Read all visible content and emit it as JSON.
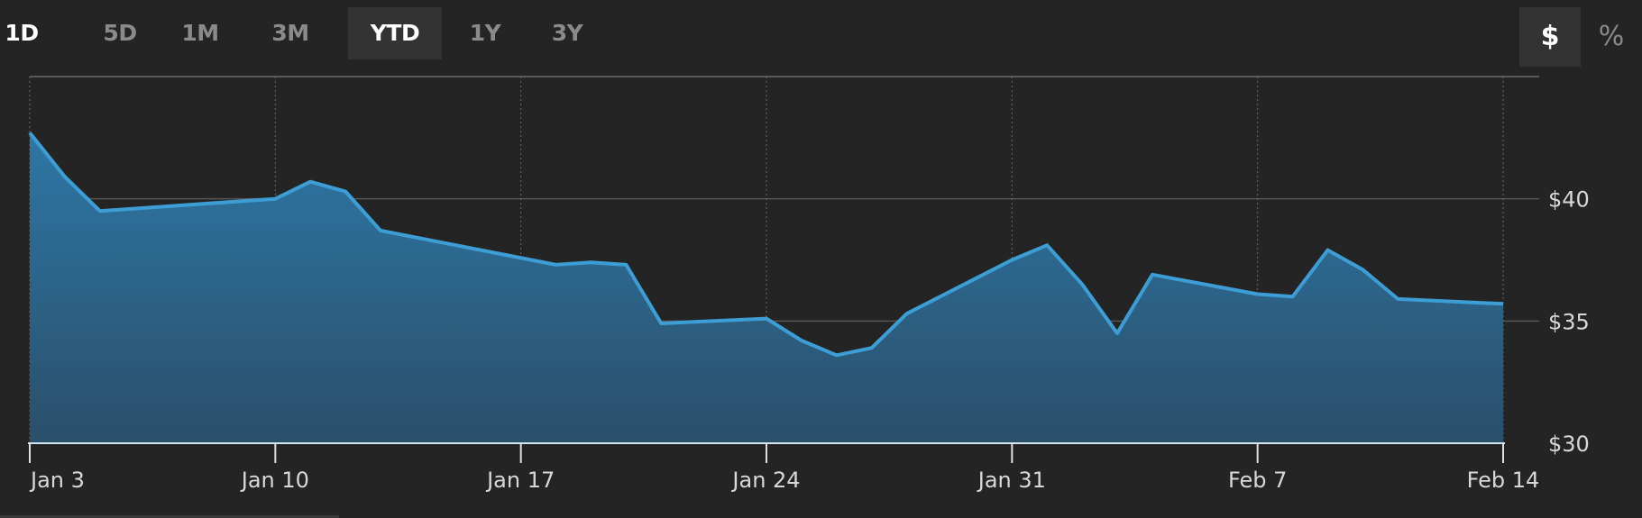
{
  "range_tabs": [
    {
      "label": "1D",
      "selected": false
    },
    {
      "label": "5D",
      "selected": false
    },
    {
      "label": "1M",
      "selected": false
    },
    {
      "label": "3M",
      "selected": false
    },
    {
      "label": "YTD",
      "selected": true
    },
    {
      "label": "1Y",
      "selected": false
    },
    {
      "label": "3Y",
      "selected": false
    }
  ],
  "unit_toggle": {
    "dollar_label": "$",
    "percent_label": "%",
    "selected": "$"
  },
  "colors": {
    "line": "#3d9ed6",
    "fill_top": "#2e77a6",
    "fill_bottom": "#2a4f6a",
    "background": "#242424",
    "grid": "#555555"
  },
  "chart_data": {
    "type": "area",
    "x": [
      "Jan 3",
      "Jan 4",
      "Jan 5",
      "Jan 10",
      "Jan 11",
      "Jan 12",
      "Jan 13",
      "Jan 18",
      "Jan 19",
      "Jan 20",
      "Jan 21",
      "Jan 24",
      "Jan 25",
      "Jan 26",
      "Jan 27",
      "Jan 28",
      "Jan 31",
      "Feb 1",
      "Feb 2",
      "Feb 3",
      "Feb 4",
      "Feb 7",
      "Feb 8",
      "Feb 9",
      "Feb 10",
      "Feb 11",
      "Feb 14"
    ],
    "values": [
      42.7,
      40.9,
      39.5,
      40.0,
      40.7,
      40.3,
      38.7,
      37.3,
      37.4,
      37.3,
      34.9,
      35.1,
      34.2,
      33.6,
      33.9,
      35.3,
      37.5,
      38.1,
      36.5,
      34.5,
      36.9,
      36.1,
      36.0,
      37.9,
      37.1,
      35.9,
      35.7
    ],
    "x_tick_labels": [
      "Jan 3",
      "Jan 10",
      "Jan 17",
      "Jan 24",
      "Jan 31",
      "Feb 7",
      "Feb 14"
    ],
    "y_tick_labels": [
      "$40",
      "$35",
      "$30"
    ],
    "y_ticks": [
      40,
      35,
      30
    ],
    "ylim": [
      30,
      45
    ],
    "grid": true
  }
}
